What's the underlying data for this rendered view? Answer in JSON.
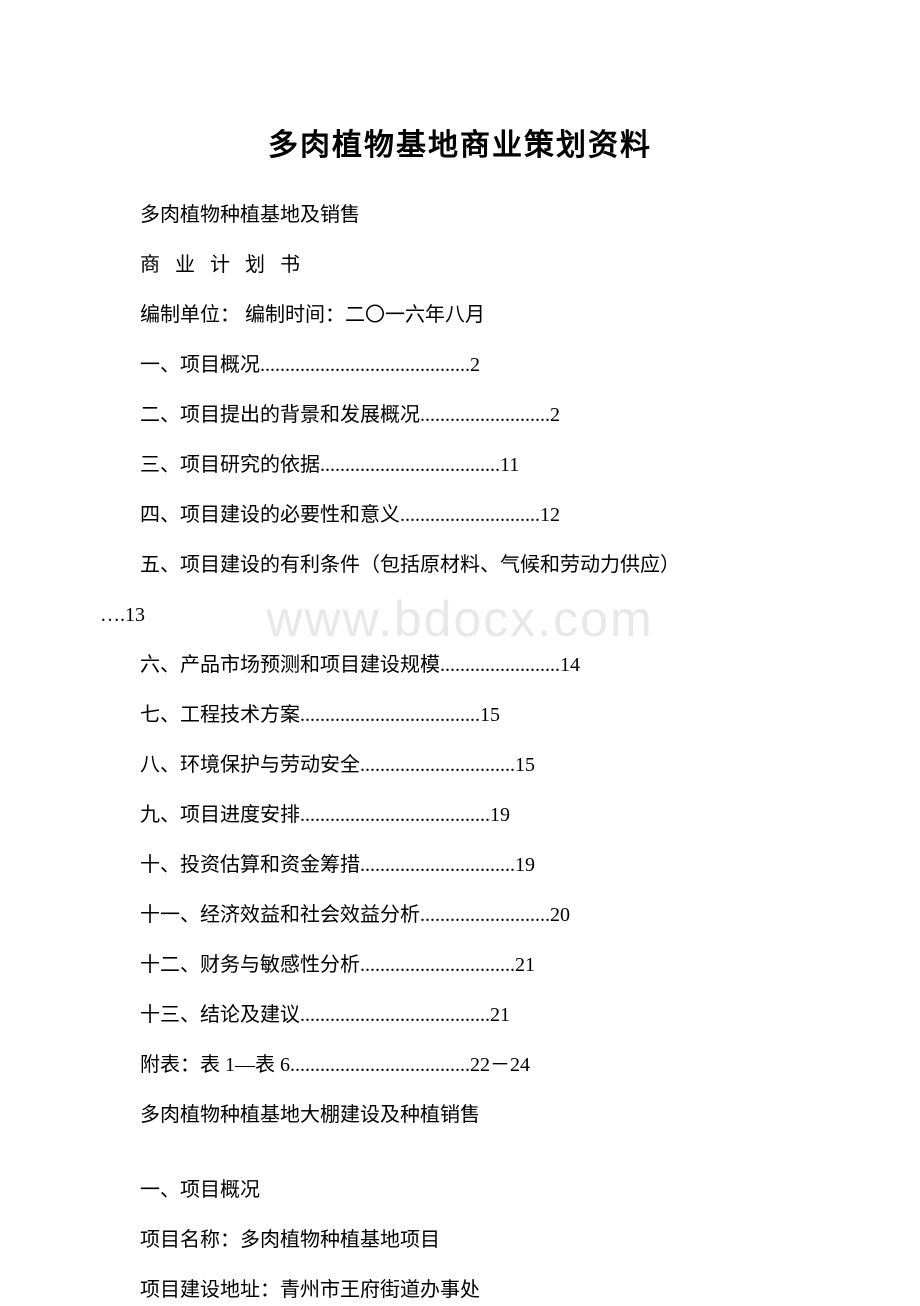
{
  "title": "多肉植物基地商业策划资料",
  "watermark": "www.bdocx.com",
  "lines": {
    "l1": "多肉植物种植基地及销售",
    "l2": "商 业 计 划 书",
    "l3": "编制单位： 编制时间：二〇一六年八月",
    "l4": "一、项目概况..........................................2",
    "l5": "二、项目提出的背景和发展概况..........................2",
    "l6": "三、项目研究的依据....................................11",
    "l7": "四、项目建设的必要性和意义............................12",
    "l8a": "五、项目建设的有利条件（包括原材料、气候和劳动力供应）",
    "l8b": "….13",
    "l9": "六、产品市场预测和项目建设规模........................14",
    "l10": "七、工程技术方案....................................15",
    "l11": "八、环境保护与劳动安全...............................15",
    "l12": "九、项目进度安排......................................19",
    "l13": "十、投资估算和资金筹措...............................19",
    "l14": "十一、经济效益和社会效益分析..........................20",
    "l15": "十二、财务与敏感性分析...............................21",
    "l16": "十三、结论及建议......................................21",
    "l17": "附表：表 1—表 6....................................22－24",
    "l18": "多肉植物种植基地大棚建设及种植销售",
    "l19": "一、项目概况",
    "l20": "项目名称：多肉植物种植基地项目",
    "l21": "项目建设地址：青州市王府街道办事处"
  },
  "colors": {
    "text": "#000000",
    "background": "#ffffff",
    "watermark": "#e8e8e8"
  },
  "typography": {
    "title_fontsize": 30,
    "body_fontsize": 20,
    "watermark_fontsize": 50,
    "font_family": "SimSun"
  }
}
